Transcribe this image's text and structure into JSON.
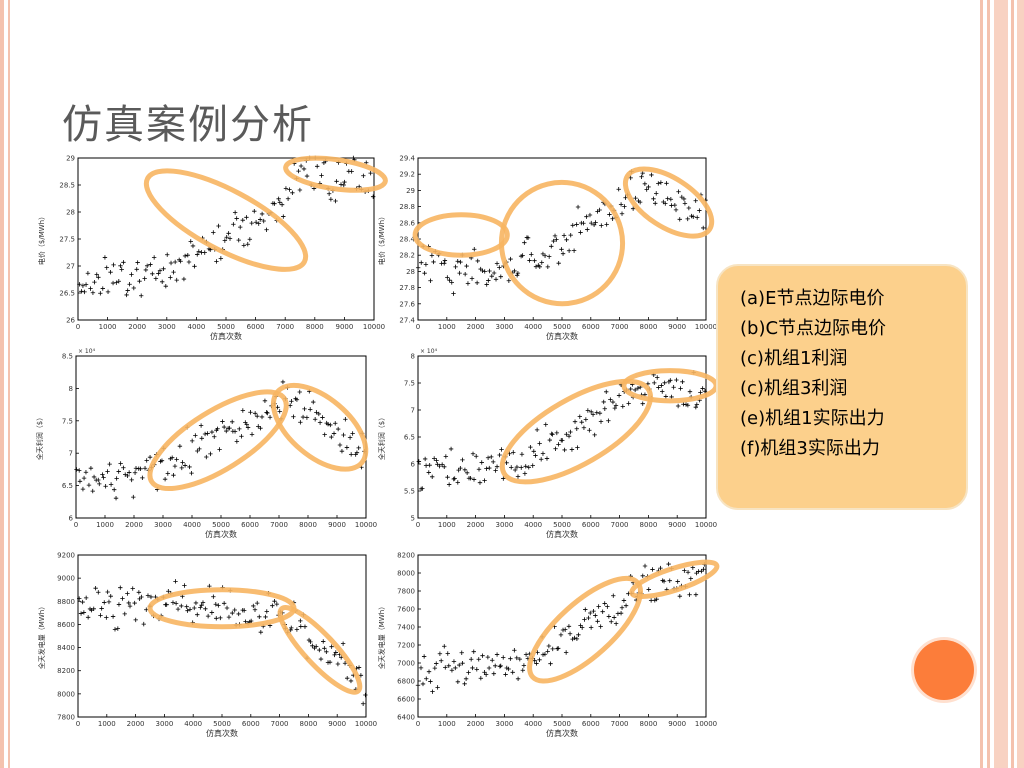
{
  "slide": {
    "title": "仿真案例分析"
  },
  "legend": {
    "items": [
      "(a)E节点边际电价",
      "(b)C节点边际电价",
      "(c)机组1利润",
      "(c)机组3利润",
      "(e)机组1实际出力",
      "(f)机组3实际出力"
    ]
  },
  "colors": {
    "highlight": "#f7b562",
    "marker": "#000000",
    "legend_bg": "#fcd08c",
    "accent_dot": "#fc7d3a"
  },
  "chart_data": [
    {
      "type": "scatter",
      "marker": "+",
      "xlabel": "仿真次数",
      "ylabel": "电价（$/MWh）",
      "xlim": [
        0,
        10000
      ],
      "ylim": [
        26,
        29
      ],
      "xticks": [
        "0",
        "1000",
        "2000",
        "3000",
        "4000",
        "5000",
        "6000",
        "7000",
        "8000",
        "9000",
        "10000"
      ],
      "yticks": [
        "26",
        "26.5",
        "27",
        "27.5",
        "28",
        "28.5",
        "29"
      ],
      "exponent": "",
      "trend": {
        "x": [
          0,
          3000,
          7000,
          7400,
          10000
        ],
        "y": [
          26.7,
          26.9,
          28.2,
          28.7,
          28.6
        ]
      },
      "highlights": [
        {
          "cx": 5000,
          "cy": 27.85,
          "rx": 3000,
          "ry": 0.55,
          "rot": 28
        },
        {
          "cx": 8700,
          "cy": 28.7,
          "rx": 1700,
          "ry": 0.27,
          "rot": 8
        }
      ]
    },
    {
      "type": "scatter",
      "marker": "+",
      "xlabel": "仿真次数",
      "ylabel": "电价（$/MWh）",
      "xlim": [
        0,
        10000
      ],
      "ylim": [
        27.4,
        29.4
      ],
      "xticks": [
        "0",
        "1000",
        "2000",
        "3000",
        "4000",
        "5000",
        "6000",
        "7000",
        "8000",
        "9000",
        "10000"
      ],
      "yticks": [
        "27.4",
        "27.6",
        "27.8",
        "28",
        "28.2",
        "28.4",
        "28.6",
        "28.8",
        "29",
        "29.2",
        "29.4"
      ],
      "exponent": "",
      "trend": {
        "x": [
          0,
          3000,
          7000,
          7400,
          10000
        ],
        "y": [
          28.1,
          28.0,
          28.8,
          29.1,
          28.7
        ]
      },
      "highlights": [
        {
          "cx": 1500,
          "cy": 28.45,
          "rx": 1600,
          "ry": 0.25,
          "rot": 0
        },
        {
          "cx": 5000,
          "cy": 28.35,
          "rx": 2100,
          "ry": 0.75,
          "rot": -35
        },
        {
          "cx": 8700,
          "cy": 28.85,
          "rx": 1700,
          "ry": 0.3,
          "rot": 33
        }
      ]
    },
    {
      "type": "scatter",
      "marker": "+",
      "xlabel": "仿真次数",
      "ylabel": "全天利润（$）",
      "xlim": [
        0,
        10000
      ],
      "ylim": [
        6,
        8.5
      ],
      "xticks": [
        "0",
        "1000",
        "2000",
        "3000",
        "4000",
        "5000",
        "6000",
        "7000",
        "8000",
        "9000",
        "10000"
      ],
      "yticks": [
        "6",
        "6.5",
        "7",
        "7.5",
        "8",
        "8.5"
      ],
      "exponent": "× 10⁴",
      "trend": {
        "x": [
          0,
          3000,
          7000,
          7600,
          10000
        ],
        "y": [
          6.55,
          6.8,
          7.85,
          7.8,
          6.9
        ]
      },
      "highlights": [
        {
          "cx": 4900,
          "cy": 7.2,
          "rx": 2700,
          "ry": 0.45,
          "rot": -32
        },
        {
          "cx": 8400,
          "cy": 7.4,
          "rx": 1900,
          "ry": 0.45,
          "rot": 40
        }
      ]
    },
    {
      "type": "scatter",
      "marker": "+",
      "xlabel": "仿真次数",
      "ylabel": "全天利润（$）",
      "xlim": [
        0,
        10000
      ],
      "ylim": [
        5,
        8
      ],
      "xticks": [
        "0",
        "1000",
        "2000",
        "3000",
        "4000",
        "5000",
        "6000",
        "7000",
        "8000",
        "9000",
        "10000"
      ],
      "yticks": [
        "5",
        "5.5",
        "6",
        "6.5",
        "7",
        "7.5",
        "8"
      ],
      "exponent": "× 10⁴",
      "trend": {
        "x": [
          0,
          3500,
          7600,
          10000
        ],
        "y": [
          5.85,
          6.0,
          7.4,
          7.35
        ]
      },
      "highlights": [
        {
          "cx": 5500,
          "cy": 6.6,
          "rx": 2900,
          "ry": 0.6,
          "rot": -30
        },
        {
          "cx": 8750,
          "cy": 7.45,
          "rx": 1600,
          "ry": 0.28,
          "rot": 0
        }
      ]
    },
    {
      "type": "scatter",
      "marker": "+",
      "xlabel": "仿真次数",
      "ylabel": "全天发电量（MWh）",
      "xlim": [
        0,
        10000
      ],
      "ylim": [
        7800,
        9200
      ],
      "xticks": [
        "0",
        "1000",
        "2000",
        "3000",
        "4000",
        "5000",
        "6000",
        "7000",
        "8000",
        "9000",
        "10000"
      ],
      "yticks": [
        "7800",
        "8000",
        "8200",
        "8400",
        "8600",
        "8800",
        "9000",
        "9200"
      ],
      "exponent": "",
      "trend": {
        "x": [
          0,
          3000,
          7000,
          10000
        ],
        "y": [
          8750,
          8780,
          8700,
          8050
        ]
      },
      "highlights": [
        {
          "cx": 5000,
          "cy": 8740,
          "rx": 2500,
          "ry": 160,
          "rot": 0
        },
        {
          "cx": 8400,
          "cy": 8380,
          "rx": 1950,
          "ry": 130,
          "rot": 47
        }
      ]
    },
    {
      "type": "scatter",
      "marker": "+",
      "xlabel": "仿真次数",
      "ylabel": "全天发电量（MWh）",
      "xlim": [
        0,
        10000
      ],
      "ylim": [
        6400,
        8200
      ],
      "xticks": [
        "0",
        "1000",
        "2000",
        "3000",
        "4000",
        "5000",
        "6000",
        "7000",
        "8000",
        "9000",
        "10000"
      ],
      "yticks": [
        "6400",
        "6600",
        "6800",
        "7000",
        "7200",
        "7400",
        "7600",
        "7800",
        "8000",
        "8200"
      ],
      "exponent": "",
      "trend": {
        "x": [
          0,
          3500,
          8000,
          10000
        ],
        "y": [
          6900,
          7000,
          7850,
          8050
        ]
      },
      "highlights": [
        {
          "cx": 5800,
          "cy": 7370,
          "rx": 2450,
          "ry": 300,
          "rot": -42
        },
        {
          "cx": 8900,
          "cy": 7930,
          "rx": 1550,
          "ry": 120,
          "rot": -18
        }
      ]
    }
  ]
}
